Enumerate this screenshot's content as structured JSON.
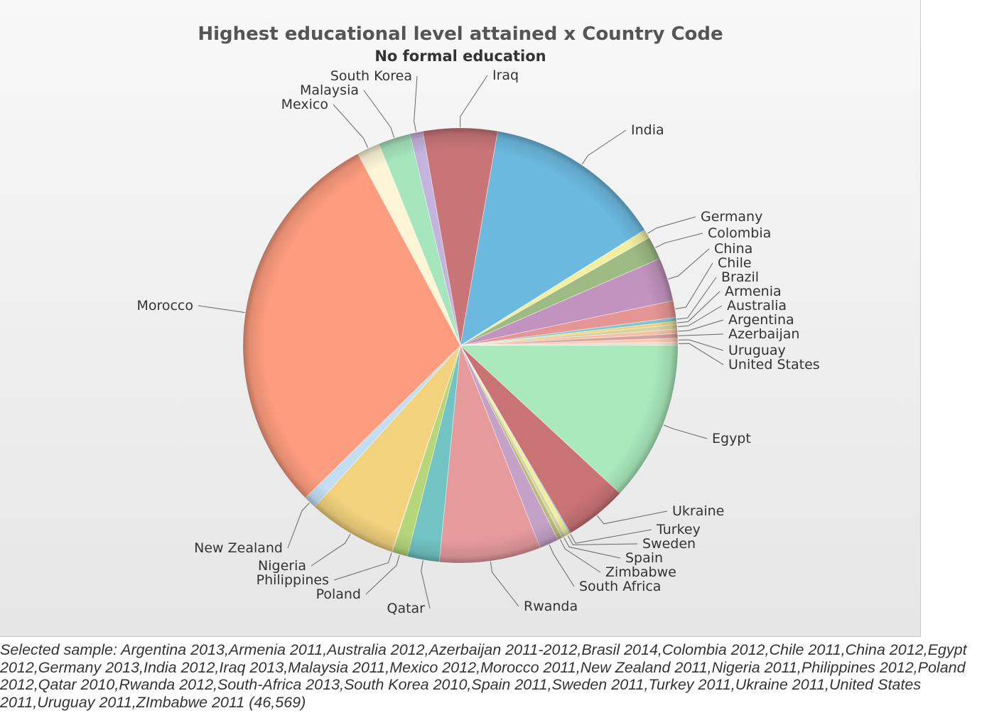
{
  "chart_data": {
    "type": "pie",
    "title": "Highest educational level attained x Country Code",
    "subtitle": "No formal education",
    "categories": [
      "Iraq",
      "India",
      "Germany",
      "Colombia",
      "China",
      "Chile",
      "Brazil",
      "Armenia",
      "Australia",
      "Argentina",
      "Azerbaijan",
      "Uruguay",
      "United States",
      "Egypt",
      "Ukraine",
      "Turkey",
      "Sweden",
      "Spain",
      "Zimbabwe",
      "South Africa",
      "Rwanda",
      "Qatar",
      "Poland",
      "Philippines",
      "Nigeria",
      "New Zealand",
      "Morocco",
      "Mexico",
      "Malaysia",
      "South Korea"
    ],
    "values": [
      5.8,
      14.0,
      0.7,
      1.8,
      3.4,
      1.3,
      0.3,
      0.25,
      0.35,
      0.35,
      0.35,
      0.3,
      0.25,
      12.5,
      4.9,
      0.1,
      0.35,
      0.3,
      0.35,
      1.5,
      7.9,
      2.5,
      1.2,
      0.05,
      6.9,
      1.0,
      31.0,
      1.8,
      2.5,
      1.0
    ],
    "colors": [
      "#c97578",
      "#6cb9df",
      "#f2efa2",
      "#9ebb84",
      "#c193be",
      "#e59593",
      "#80c7cd",
      "#f2d07c",
      "#d7d3a0",
      "#f2c2a7",
      "#d9a0a0",
      "#f7c8b2",
      "#f2dcd2",
      "#a9e9bb",
      "#c97375",
      "#9ec6d2",
      "#f0ee99",
      "#d5d5a0",
      "#bcbb7c",
      "#c4a2c7",
      "#e59a9c",
      "#72c3c3",
      "#b5d77a",
      "#f2cf7b",
      "#f2d27d",
      "#c3def2",
      "#fd9c7e",
      "#fdf5d6",
      "#a6e6bd",
      "#c4b3dc"
    ],
    "legend": "none"
  },
  "caption": "Selected sample: Argentina 2013,Armenia 2011,Australia 2012,Azerbaijan 2011-2012,Brasil 2014,Colombia 2012,Chile 2011,China 2012,Egypt 2012,Germany 2013,India 2012,Iraq 2013,Malaysia 2011,Mexico 2012,Morocco 2011,New Zealand 2011,Nigeria 2011,Philippines 2012,Poland 2012,Qatar 2010,Rwanda 2012,South-Africa 2013,South Korea 2010,Spain 2011,Sweden 2011,Turkey 2011,Ukraine 2011,United States 2011,Uruguay 2011,ZImbabwe 2011 (46,569)"
}
